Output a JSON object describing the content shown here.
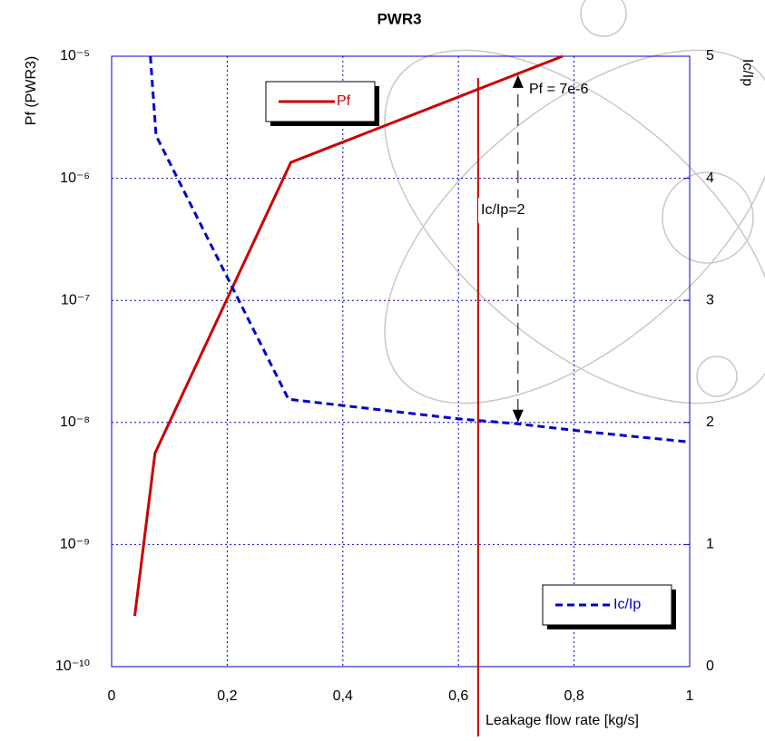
{
  "chart_data": {
    "type": "line",
    "title": "PWR3",
    "x_label": "Leakage flow rate [kg/s]",
    "y_label": "Pf (PWR3)",
    "y2_label": "Ic/Ip",
    "xlim": [
      0,
      1
    ],
    "xticks": [
      0,
      {
        "value": 0.2,
        "label": "0,2"
      },
      {
        "value": 0.4,
        "label": "0,4"
      },
      {
        "value": 0.6,
        "label": "0,6"
      },
      {
        "value": 0.8,
        "label": "0,8"
      },
      1
    ],
    "ylim": [
      1e-10,
      1e-05
    ],
    "y_scale": "log",
    "yticks": [
      {
        "value": 1e-10,
        "label": "10⁻¹⁰"
      },
      {
        "value": 1e-09,
        "label": "10⁻⁹"
      },
      {
        "value": 1e-08,
        "label": "10⁻⁸"
      },
      {
        "value": 1e-07,
        "label": "10⁻⁷"
      },
      {
        "value": 1e-06,
        "label": "10⁻⁶"
      },
      {
        "value": 1e-05,
        "label": "10⁻⁵"
      }
    ],
    "y2lim": [
      0,
      5
    ],
    "y2ticks": [
      0,
      1,
      2,
      3,
      4,
      5
    ],
    "grid": true,
    "series": [
      {
        "name": "Pf",
        "color": "#cc0000",
        "dash": false,
        "x": [
          0.04,
          0.075,
          0.31,
          0.78
        ],
        "values": [
          2.6e-10,
          5.6e-09,
          1.35e-06,
          1e-05
        ]
      },
      {
        "name": "Ic/Ip",
        "color": "#0000cc",
        "dash": true,
        "axis": "y2",
        "x": [
          0.067,
          0.077,
          0.306,
          0.6,
          0.7,
          0.83,
          1
        ],
        "values": [
          5,
          4.35,
          2.19,
          2.03,
          1.99,
          1.92,
          1.84
        ]
      }
    ],
    "vline": {
      "x": 0.634,
      "color": "#cc0000"
    },
    "arrow": {
      "x": 0.703,
      "from_y2": 2,
      "to_y": 7e-06
    },
    "annotations": [
      "Pf = 7e-6",
      "Ic/Ip=2"
    ]
  }
}
